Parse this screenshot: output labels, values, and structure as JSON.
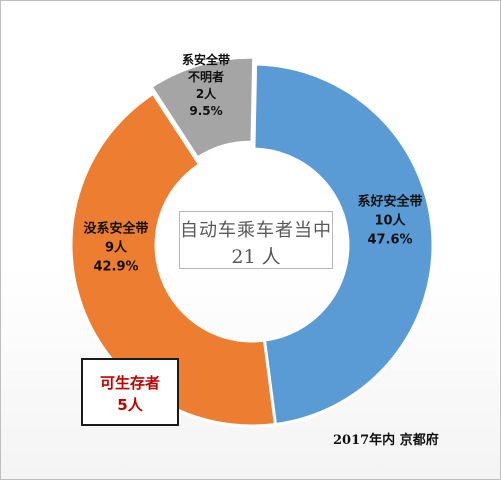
{
  "chart_data": {
    "type": "pie",
    "donut": true,
    "total": 21,
    "center_label": {
      "title": "自动车乘车者当中",
      "count": "21 人"
    },
    "slices": [
      {
        "key": "seatbelt",
        "lines": [
          "系好安全带",
          "10人",
          "47.6%"
        ],
        "value": 10,
        "percent": 47.6,
        "color": "#5b9bd5",
        "text_color": "#111111"
      },
      {
        "key": "noseatbelt",
        "lines": [
          "没系安全带",
          "9人",
          "42.9%"
        ],
        "value": 9,
        "percent": 42.9,
        "color": "#ed7d31",
        "text_color": "#111111"
      },
      {
        "key": "unknown",
        "lines": [
          "系安全带",
          "不明者",
          "2人",
          "9.5%"
        ],
        "value": 2,
        "percent": 9.5,
        "color": "#a5a5a5",
        "text_color": "#111111"
      }
    ],
    "callout": {
      "title": "可生存者",
      "count": "5人",
      "color": "#c00000"
    },
    "note": "2017年内 京都府"
  }
}
